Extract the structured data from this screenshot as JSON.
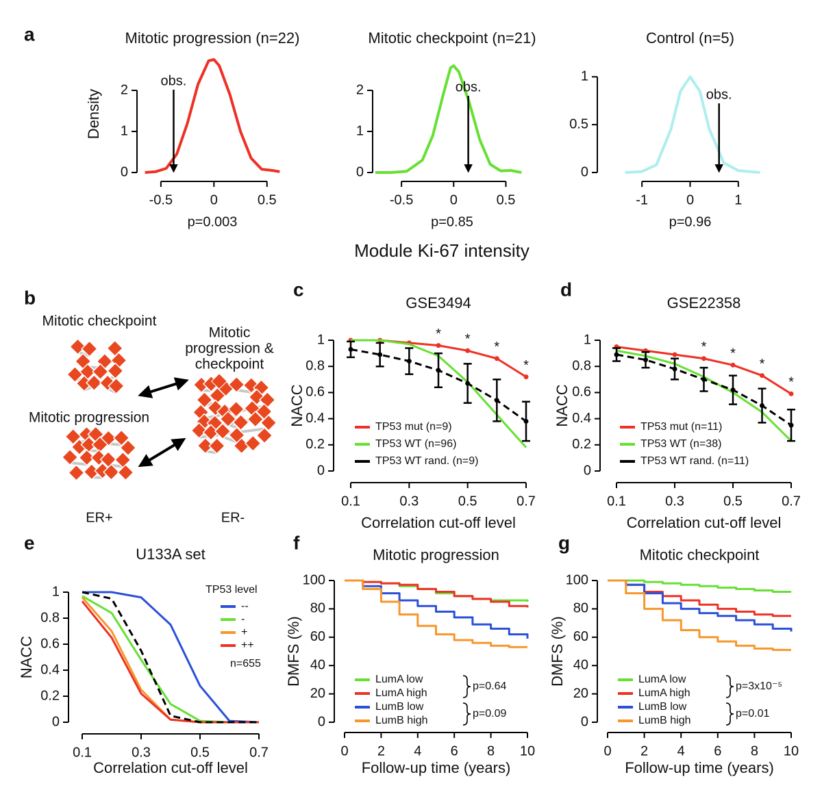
{
  "shared_xlabel_a": "Module Ki-67 intensity",
  "diagram": {
    "panel_label": "b",
    "checkpoint": "Mitotic checkpoint",
    "progression": "Mitotic progression",
    "both": [
      "Mitotic",
      "progression &",
      "checkpoint"
    ],
    "er_pos": "ER+",
    "er_neg": "ER-"
  },
  "chart_data": [
    {
      "type": "line",
      "panel_label": "a",
      "title": "Mitotic progression (n=22)",
      "ylabel": "Density",
      "x": [
        -0.65,
        -0.55,
        -0.45,
        -0.35,
        -0.25,
        -0.15,
        -0.05,
        0,
        0.05,
        0.15,
        0.25,
        0.35,
        0.45,
        0.55,
        0.62
      ],
      "series": [
        {
          "color": "#ee3124",
          "values": [
            0,
            0.02,
            0.1,
            0.45,
            1.2,
            2.15,
            2.72,
            2.75,
            2.6,
            1.9,
            1.0,
            0.35,
            0.08,
            0.05,
            0.02
          ]
        }
      ],
      "xlim": [
        -0.68,
        0.65
      ],
      "ylim": [
        0,
        2.85
      ],
      "xticks": [
        -0.5,
        0,
        0.5
      ],
      "yticks": [
        0,
        1,
        2
      ],
      "observed": -0.38,
      "observed_label": "obs.",
      "p_label": "p=0.003"
    },
    {
      "type": "line",
      "title": "Mitotic checkpoint (n=21)",
      "x": [
        -0.75,
        -0.6,
        -0.45,
        -0.3,
        -0.2,
        -0.1,
        -0.03,
        0,
        0.05,
        0.15,
        0.25,
        0.35,
        0.45,
        0.55,
        0.65
      ],
      "series": [
        {
          "color": "#66e033",
          "values": [
            0,
            0,
            0.03,
            0.3,
            0.9,
            1.9,
            2.55,
            2.6,
            2.45,
            1.7,
            0.8,
            0.2,
            0.04,
            0.05,
            0
          ]
        }
      ],
      "xlim": [
        -0.75,
        0.72
      ],
      "ylim": [
        0,
        2.7
      ],
      "xticks": [
        -0.5,
        0,
        0.5
      ],
      "yticks": [
        0,
        1,
        2
      ],
      "observed": 0.14,
      "observed_label": "obs.",
      "p_label": "p=0.85"
    },
    {
      "type": "line",
      "title": "Control (n=5)",
      "x": [
        -1.35,
        -1,
        -0.7,
        -0.4,
        -0.2,
        0,
        0.2,
        0.4,
        0.7,
        1,
        1.45
      ],
      "series": [
        {
          "color": "#aeeeee",
          "values": [
            0,
            0.01,
            0.08,
            0.45,
            0.85,
            1.0,
            0.85,
            0.45,
            0.1,
            0.02,
            0
          ]
        }
      ],
      "xlim": [
        -1.5,
        1.5
      ],
      "ylim": [
        0,
        1.08
      ],
      "xticks": [
        -1,
        0,
        1
      ],
      "yticks": [
        0,
        0.5,
        1
      ],
      "observed": 0.6,
      "observed_label": "obs.",
      "p_label": "p=0.96"
    },
    {
      "type": "line",
      "panel_label": "c",
      "title": "GSE3494",
      "xlabel": "Correlation cut-off level",
      "ylabel": "NACC",
      "x": [
        0.1,
        0.2,
        0.3,
        0.4,
        0.5,
        0.6,
        0.7
      ],
      "series": [
        {
          "name": "TP53 mut (n=9)",
          "color": "#ee3124",
          "markers": true,
          "values": [
            1.0,
            1.0,
            0.98,
            0.96,
            0.92,
            0.86,
            0.72
          ]
        },
        {
          "name": "TP53 WT (n=96)",
          "color": "#66e033",
          "values": [
            1.0,
            1.0,
            0.97,
            0.88,
            0.68,
            0.43,
            0.18
          ]
        },
        {
          "name": "TP53 WT rand. (n=9)",
          "color": "#000000",
          "dashed": true,
          "markers": true,
          "values": [
            0.93,
            0.89,
            0.84,
            0.77,
            0.67,
            0.54,
            0.38
          ],
          "errors": [
            0.06,
            0.09,
            0.1,
            0.13,
            0.15,
            0.16,
            0.15
          ]
        }
      ],
      "significance": [
        null,
        null,
        null,
        "*",
        "*",
        "*",
        "*"
      ],
      "xlim": [
        0.1,
        0.7
      ],
      "ylim": [
        0,
        1
      ],
      "xticks": [
        0.1,
        0.3,
        0.5,
        0.7
      ],
      "yticks": [
        0,
        0.2,
        0.4,
        0.6,
        0.8,
        1
      ]
    },
    {
      "type": "line",
      "panel_label": "d",
      "title": "GSE22358",
      "xlabel": "Correlation cut-off level",
      "ylabel": "NACC",
      "x": [
        0.1,
        0.2,
        0.3,
        0.4,
        0.5,
        0.6,
        0.7
      ],
      "series": [
        {
          "name": "TP53 mut (n=11)",
          "color": "#ee3124",
          "markers": true,
          "values": [
            0.95,
            0.92,
            0.89,
            0.86,
            0.81,
            0.73,
            0.59
          ]
        },
        {
          "name": "TP53 WT (n=38)",
          "color": "#66e033",
          "values": [
            0.92,
            0.88,
            0.82,
            0.72,
            0.6,
            0.45,
            0.23
          ]
        },
        {
          "name": "TP53 WT rand. (n=11)",
          "color": "#000000",
          "dashed": true,
          "markers": true,
          "values": [
            0.89,
            0.85,
            0.78,
            0.7,
            0.62,
            0.5,
            0.35
          ],
          "errors": [
            0.05,
            0.06,
            0.08,
            0.09,
            0.11,
            0.13,
            0.12
          ]
        }
      ],
      "significance": [
        null,
        null,
        null,
        "*",
        "*",
        "*",
        "*"
      ],
      "xlim": [
        0.1,
        0.7
      ],
      "ylim": [
        0,
        1
      ],
      "xticks": [
        0.1,
        0.3,
        0.5,
        0.7
      ],
      "yticks": [
        0,
        0.2,
        0.4,
        0.6,
        0.8,
        1
      ]
    },
    {
      "type": "line",
      "panel_label": "e",
      "title": "U133A set",
      "xlabel": "Correlation cut-off level",
      "ylabel": "NACC",
      "legend_title": "TP53 level",
      "n_label": "n=655",
      "x": [
        0.1,
        0.2,
        0.3,
        0.4,
        0.5,
        0.6,
        0.7
      ],
      "series": [
        {
          "name": "--",
          "color": "#2b50d8",
          "values": [
            1,
            1,
            0.96,
            0.75,
            0.28,
            0.01,
            0
          ]
        },
        {
          "name": "-",
          "color": "#66e033",
          "values": [
            0.97,
            0.84,
            0.48,
            0.14,
            0.01,
            0,
            0
          ]
        },
        {
          "name": "+",
          "color": "#f7962b",
          "values": [
            0.96,
            0.7,
            0.25,
            0.02,
            0,
            0,
            0
          ]
        },
        {
          "name": "++",
          "color": "#ee3124",
          "values": [
            0.93,
            0.65,
            0.22,
            0.02,
            0,
            0,
            0
          ]
        },
        {
          "color": "#000000",
          "dashed": true,
          "values": [
            1,
            0.95,
            0.55,
            0.05,
            0,
            0,
            0
          ]
        }
      ],
      "xlim": [
        0.1,
        0.7
      ],
      "ylim": [
        0,
        1
      ],
      "xticks": [
        0.1,
        0.3,
        0.5,
        0.7
      ],
      "yticks": [
        0,
        0.2,
        0.4,
        0.6,
        0.8,
        1
      ]
    },
    {
      "type": "line",
      "step": true,
      "panel_label": "f",
      "title": "Mitotic progression",
      "xlabel": "Follow-up time (years)",
      "ylabel": "DMFS (%)",
      "x": [
        0,
        1,
        2,
        3,
        4,
        5,
        6,
        7,
        8,
        9,
        10
      ],
      "series": [
        {
          "name": "LumA low",
          "color": "#66e033",
          "values": [
            100,
            99,
            98,
            96,
            94,
            91,
            89,
            87,
            86,
            86,
            85
          ]
        },
        {
          "name": "LumA high",
          "color": "#ee3124",
          "values": [
            100,
            99,
            98,
            97,
            94,
            92,
            89,
            87,
            85,
            82,
            81
          ]
        },
        {
          "name": "LumB low",
          "color": "#2b50d8",
          "values": [
            100,
            96,
            91,
            86,
            82,
            78,
            74,
            69,
            66,
            62,
            59
          ]
        },
        {
          "name": "LumB high",
          "color": "#f7962b",
          "values": [
            100,
            94,
            85,
            76,
            68,
            62,
            58,
            56,
            54,
            53,
            53
          ]
        }
      ],
      "p_labels": [
        "p=0.64",
        "p=0.09"
      ],
      "xlim": [
        0,
        10
      ],
      "ylim": [
        0,
        100
      ],
      "xticks": [
        0,
        2,
        4,
        6,
        8,
        10
      ],
      "yticks": [
        0,
        20,
        40,
        60,
        80,
        100
      ]
    },
    {
      "type": "line",
      "step": true,
      "panel_label": "g",
      "title": "Mitotic checkpoint",
      "xlabel": "Follow-up time (years)",
      "ylabel": "DMFS (%)",
      "x": [
        0,
        1,
        2,
        3,
        4,
        5,
        6,
        7,
        8,
        9,
        10
      ],
      "series": [
        {
          "name": "LumA low",
          "color": "#66e033",
          "values": [
            100,
            100,
            99,
            98,
            97,
            96,
            95,
            94,
            93,
            92,
            92
          ]
        },
        {
          "name": "LumA high",
          "color": "#ee3124",
          "values": [
            100,
            97,
            92,
            89,
            86,
            83,
            80,
            78,
            76,
            75,
            75
          ]
        },
        {
          "name": "LumB low",
          "color": "#2b50d8",
          "values": [
            100,
            97,
            91,
            84,
            80,
            77,
            75,
            72,
            69,
            66,
            64
          ]
        },
        {
          "name": "LumB high",
          "color": "#f7962b",
          "values": [
            100,
            91,
            80,
            72,
            65,
            60,
            57,
            54,
            52,
            51,
            51
          ]
        }
      ],
      "p_labels": [
        "p=3x10⁻⁵",
        "p=0.01"
      ],
      "xlim": [
        0,
        10
      ],
      "ylim": [
        0,
        100
      ],
      "xticks": [
        0,
        2,
        4,
        6,
        8,
        10
      ],
      "yticks": [
        0,
        20,
        40,
        60,
        80,
        100
      ]
    }
  ]
}
